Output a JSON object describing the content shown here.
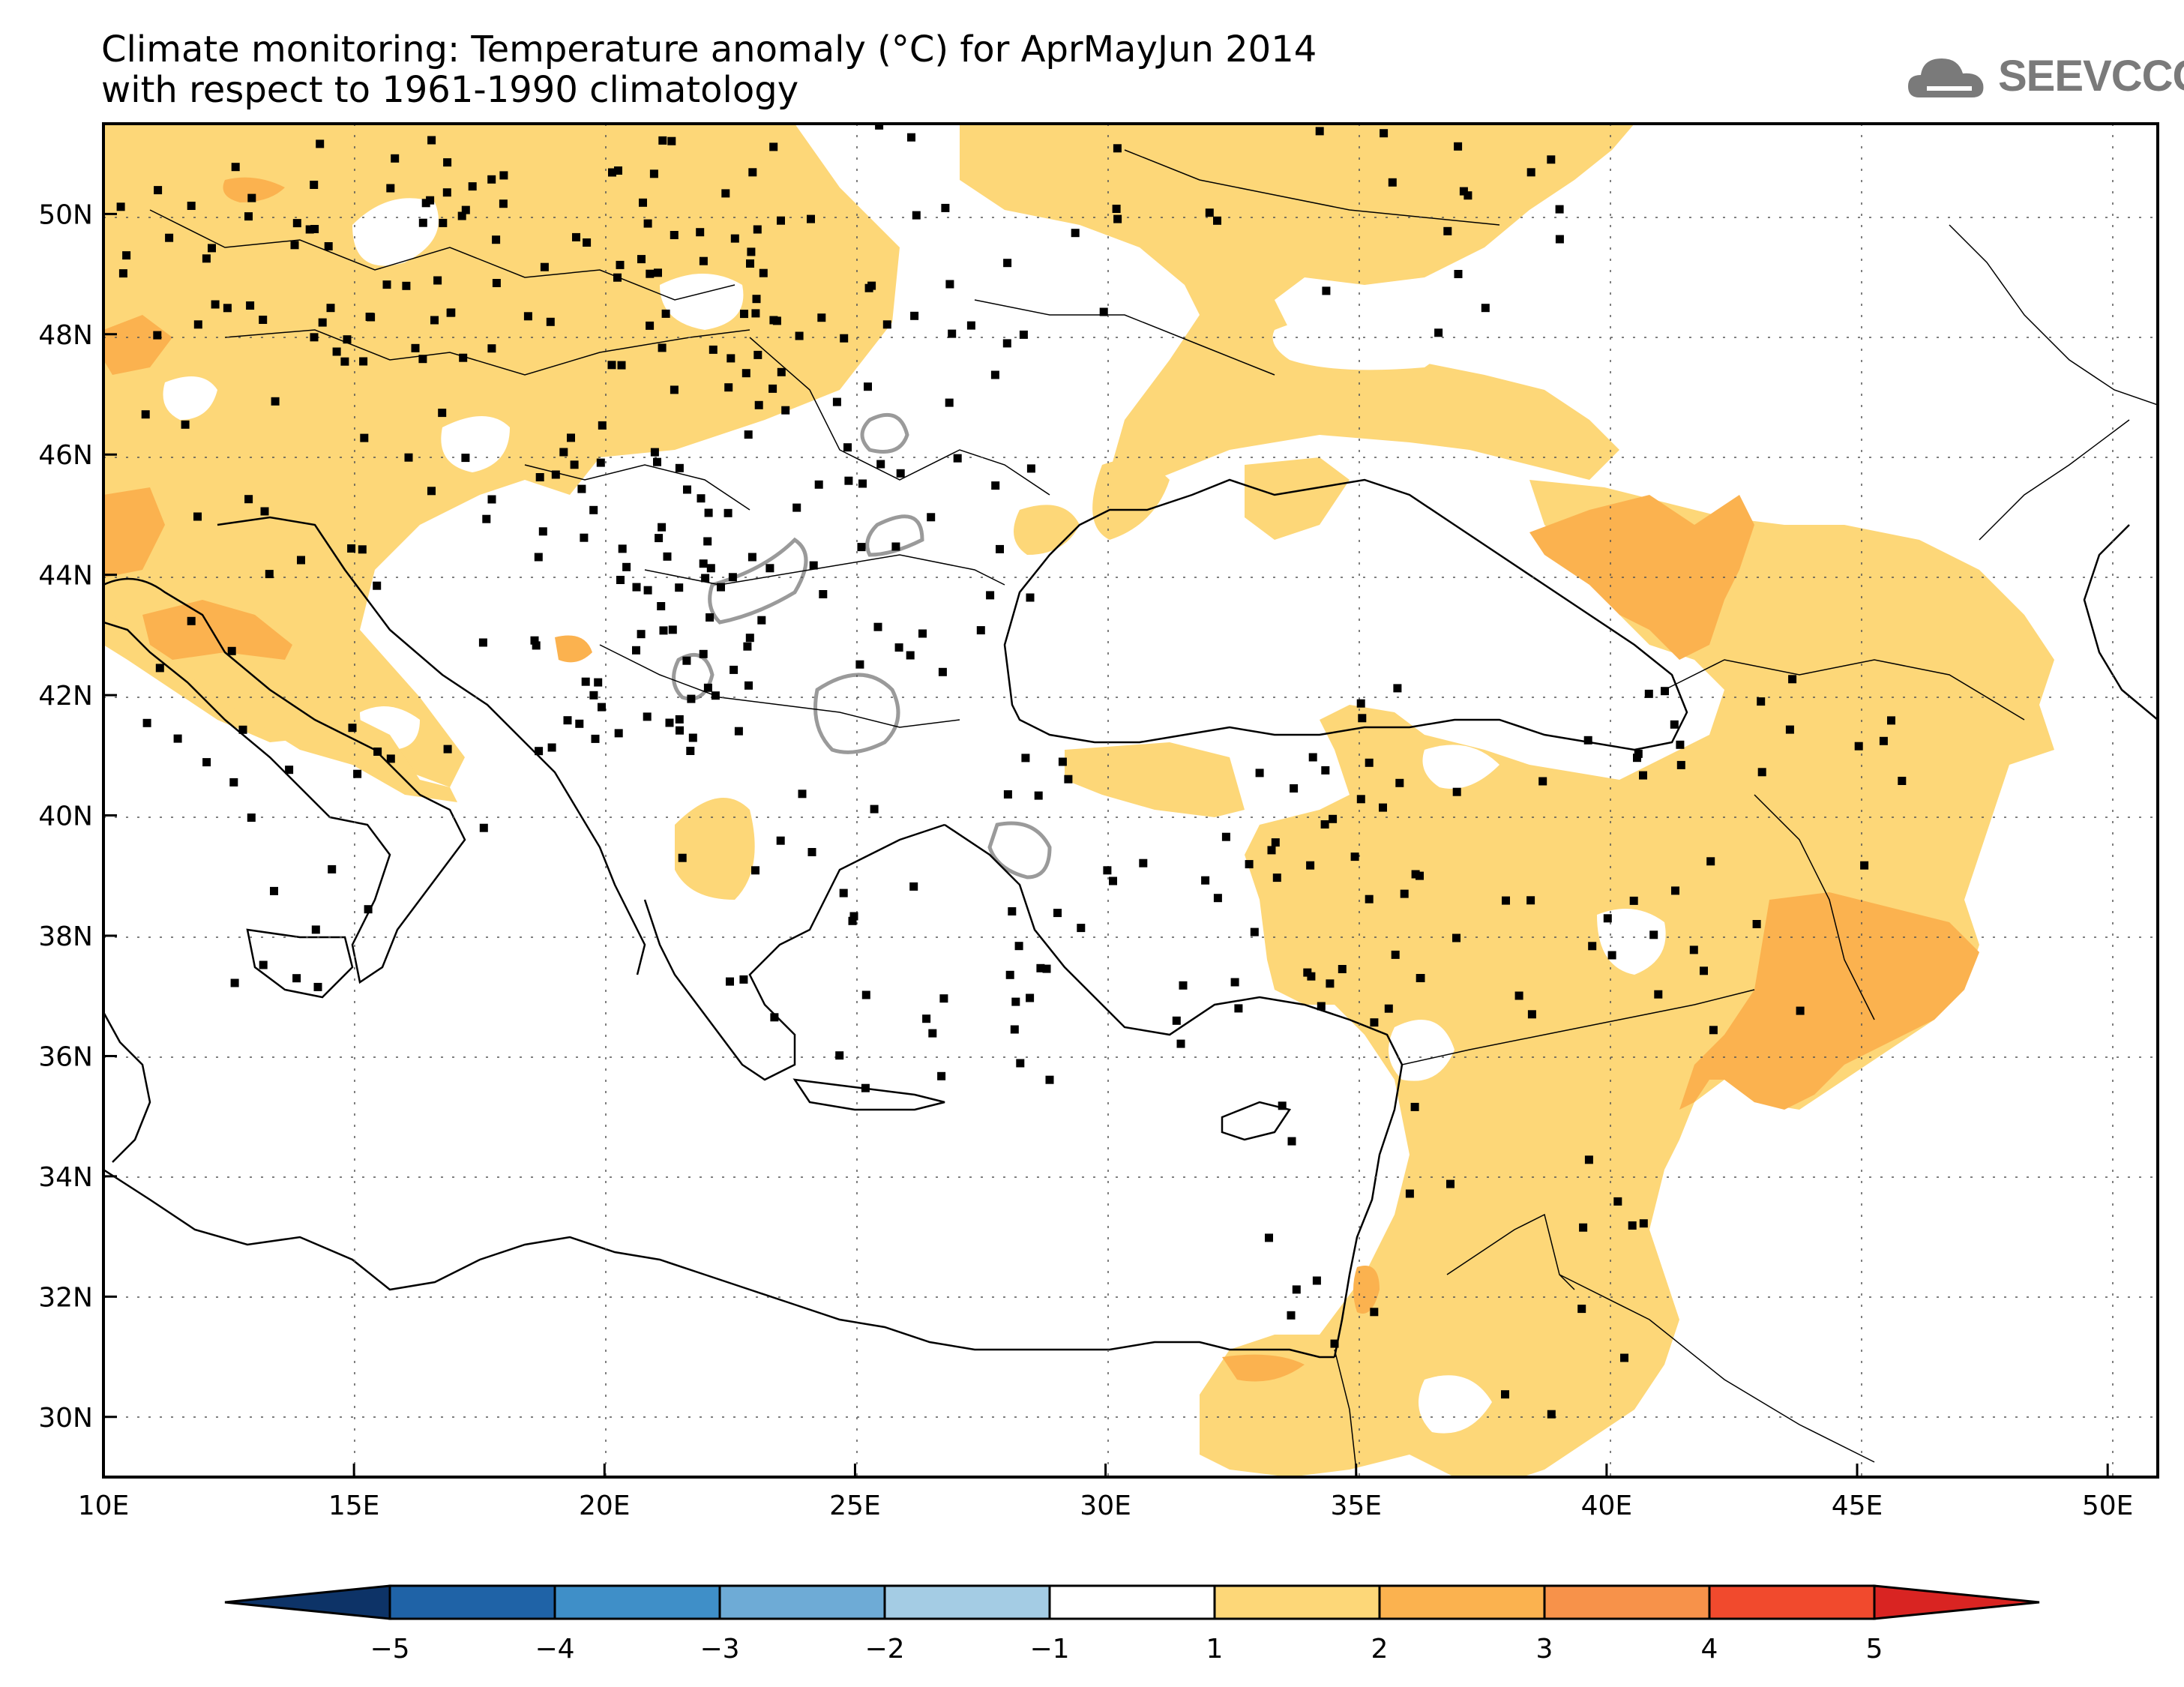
{
  "title": {
    "line1": "Climate monitoring: Temperature anomaly (°C) for AprMayJun 2014",
    "line2": "with respect to 1961-1990 climatology"
  },
  "logo": {
    "text": "SEEVCCC",
    "icon": "cloud-icon"
  },
  "map": {
    "lon_range": [
      10,
      51
    ],
    "lat_range": [
      29,
      51.5
    ],
    "lon_ticks": [
      "10E",
      "15E",
      "20E",
      "25E",
      "30E",
      "35E",
      "40E",
      "45E",
      "50E"
    ],
    "lat_ticks": [
      "30N",
      "32N",
      "34N",
      "36N",
      "38N",
      "40N",
      "42N",
      "44N",
      "46N",
      "48N",
      "50N"
    ]
  },
  "colorbar": {
    "labels": [
      "-5",
      "-4",
      "-3",
      "-2",
      "-1",
      "1",
      "2",
      "3",
      "4",
      "5"
    ],
    "colors": {
      "below_min": "#0d3367",
      "bins": [
        "#1f63a7",
        "#3f8fc8",
        "#6eabd6",
        "#a4cce4",
        "#ffffff",
        "#fdd778",
        "#fbb24f",
        "#f7924a",
        "#f14a2d"
      ],
      "above_max": "#d92422"
    }
  }
}
